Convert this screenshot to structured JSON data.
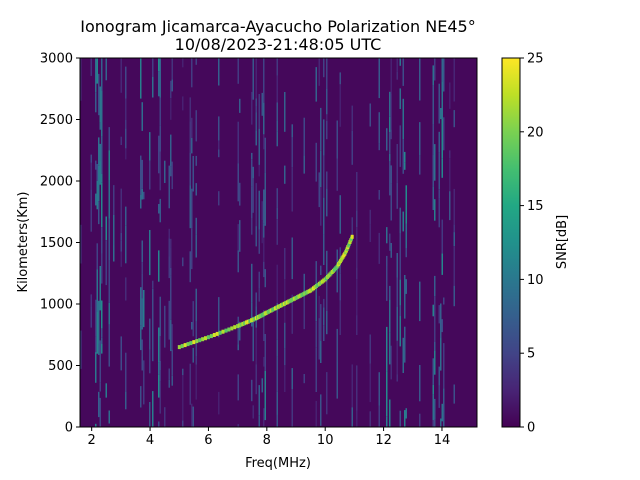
{
  "chart_data": {
    "type": "heatmap",
    "title": "Ionogram Jicamarca-Ayacucho Polarization NE45°",
    "subtitle": "10/08/2023-21:48:05 UTC",
    "xlabel": "Freq(MHz)",
    "ylabel": "Kilometers(Km)",
    "colorbar_label": "SNR[dB]",
    "colormap": "viridis",
    "xlim": [
      1.6,
      15.2
    ],
    "ylim": [
      0,
      3000
    ],
    "clim": [
      0,
      25
    ],
    "x_ticks": [
      2,
      4,
      6,
      8,
      10,
      12,
      14
    ],
    "x_tick_labels": [
      "2",
      "4",
      "6",
      "8",
      "10",
      "12",
      "14"
    ],
    "y_ticks": [
      0,
      500,
      1000,
      1500,
      2000,
      2500,
      3000
    ],
    "y_tick_labels": [
      "0",
      "500",
      "1000",
      "1500",
      "2000",
      "2500",
      "3000"
    ],
    "colorbar_ticks": [
      0,
      5,
      10,
      15,
      20,
      25
    ],
    "colorbar_tick_labels": [
      "0",
      "5",
      "10",
      "15",
      "20",
      "25"
    ],
    "trace": {
      "description_points": [
        {
          "freq": 5.0,
          "km": 650
        },
        {
          "freq": 6.0,
          "km": 730
        },
        {
          "freq": 7.0,
          "km": 820
        },
        {
          "freq": 7.6,
          "km": 880
        },
        {
          "freq": 8.0,
          "km": 930
        },
        {
          "freq": 8.5,
          "km": 990
        },
        {
          "freq": 9.0,
          "km": 1050
        },
        {
          "freq": 9.5,
          "km": 1110
        },
        {
          "freq": 10.0,
          "km": 1200
        },
        {
          "freq": 10.4,
          "km": 1300
        },
        {
          "freq": 10.7,
          "km": 1420
        },
        {
          "freq": 10.95,
          "km": 1560
        }
      ],
      "snr_db": 22
    },
    "noise_bands_mhz": [
      [
        2.0,
        2.8
      ],
      [
        3.6,
        4.3
      ],
      [
        7.9,
        8.2
      ],
      [
        11.9,
        12.2
      ],
      [
        12.5,
        13.0
      ],
      [
        13.6,
        14.0
      ]
    ],
    "background_snr_db": 0.5
  }
}
